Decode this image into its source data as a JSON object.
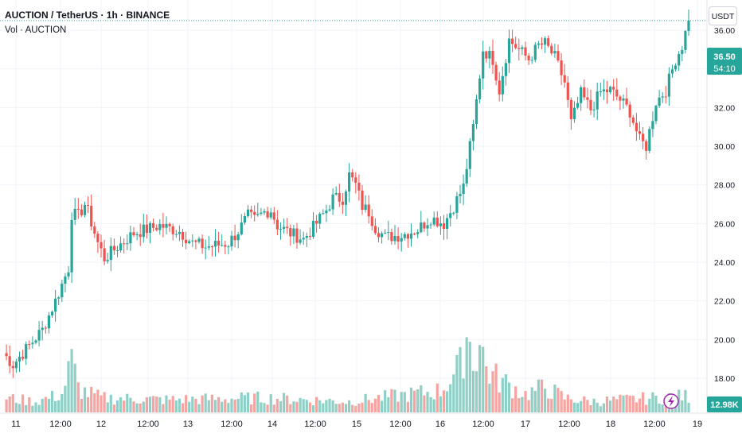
{
  "header": {
    "symbol_line": "AUCTION / TetherUS · 1h · BINANCE",
    "indicator": "Vol · AUCTION"
  },
  "currency_button": "USDT",
  "price_marker": {
    "price": "36.50",
    "countdown": "54:10"
  },
  "volume_marker": "12.98K",
  "colors": {
    "up": "#26a69a",
    "down": "#ef5350",
    "vol_up": "#8fd0c6",
    "vol_down": "#f4a4a1",
    "grid": "#f0f3fa",
    "price_tag": "#26a69a",
    "volume_tag": "#26a69a",
    "text": "#131722"
  },
  "icons": {
    "lightning": "lightning-icon"
  },
  "chart_data": {
    "type": "candlestick",
    "y_axis": {
      "ticks": [
        "18.00",
        "20.00",
        "22.00",
        "24.00",
        "26.00",
        "28.00",
        "30.00",
        "32.00",
        "34.00",
        "36.00"
      ],
      "range": [
        16.2,
        38.2
      ]
    },
    "x_axis": {
      "ticks": [
        "11",
        "12:00",
        "12",
        "12:00",
        "13",
        "12:00",
        "14",
        "12:00",
        "15",
        "12:00",
        "16",
        "12:00",
        "17",
        "12:00",
        "18",
        "12:00",
        "19"
      ]
    },
    "anchors": [
      [
        0,
        19.3
      ],
      [
        3,
        18.7
      ],
      [
        8,
        19.7
      ],
      [
        12,
        20.5
      ],
      [
        16,
        22.0
      ],
      [
        20,
        23.7
      ],
      [
        21,
        26.5
      ],
      [
        23,
        26.4
      ],
      [
        25,
        27.0
      ],
      [
        26,
        26.6
      ],
      [
        29,
        25.0
      ],
      [
        31,
        24.2
      ],
      [
        35,
        24.8
      ],
      [
        40,
        25.5
      ],
      [
        48,
        25.9
      ],
      [
        54,
        25.6
      ],
      [
        58,
        25.0
      ],
      [
        62,
        24.8
      ],
      [
        66,
        24.9
      ],
      [
        69,
        25.0
      ],
      [
        72,
        25.6
      ],
      [
        75,
        26.4
      ],
      [
        77,
        26.2
      ],
      [
        80,
        26.6
      ],
      [
        82,
        26.7
      ],
      [
        84,
        25.9
      ],
      [
        88,
        25.5
      ],
      [
        92,
        25.2
      ],
      [
        95,
        25.8
      ],
      [
        99,
        26.7
      ],
      [
        101,
        27.3
      ],
      [
        104,
        27.3
      ],
      [
        106,
        28.5
      ],
      [
        108,
        28.0
      ],
      [
        110,
        26.9
      ],
      [
        112,
        26.6
      ],
      [
        114,
        25.8
      ],
      [
        117,
        25.3
      ],
      [
        122,
        25.4
      ],
      [
        127,
        25.7
      ],
      [
        131,
        26.3
      ],
      [
        135,
        26.0
      ],
      [
        138,
        26.9
      ],
      [
        141,
        27.9
      ],
      [
        144,
        31.0
      ],
      [
        147,
        35.0
      ],
      [
        150,
        34.5
      ],
      [
        152,
        32.9
      ],
      [
        155,
        35.5
      ],
      [
        158,
        35.0
      ],
      [
        161,
        34.5
      ],
      [
        164,
        35.2
      ],
      [
        166,
        35.3
      ],
      [
        169,
        34.6
      ],
      [
        172,
        33.3
      ],
      [
        174,
        31.2
      ],
      [
        177,
        32.7
      ],
      [
        180,
        31.9
      ],
      [
        183,
        32.8
      ],
      [
        186,
        32.9
      ],
      [
        189,
        32.4
      ],
      [
        192,
        31.8
      ],
      [
        195,
        30.3
      ],
      [
        197,
        30.0
      ],
      [
        200,
        32.3
      ],
      [
        203,
        32.9
      ],
      [
        206,
        34.5
      ],
      [
        208,
        35.2
      ],
      [
        210,
        36.5
      ]
    ],
    "volume_anchors": [
      [
        0,
        8
      ],
      [
        10,
        6
      ],
      [
        18,
        10
      ],
      [
        21,
        28
      ],
      [
        23,
        14
      ],
      [
        24,
        12
      ],
      [
        30,
        8
      ],
      [
        50,
        7
      ],
      [
        80,
        8
      ],
      [
        106,
        6
      ],
      [
        134,
        12
      ],
      [
        140,
        25
      ],
      [
        142,
        45
      ],
      [
        144,
        30
      ],
      [
        146,
        38
      ],
      [
        148,
        25
      ],
      [
        150,
        20
      ],
      [
        160,
        10
      ],
      [
        166,
        14
      ],
      [
        172,
        8
      ],
      [
        180,
        6
      ],
      [
        200,
        8
      ],
      [
        210,
        9
      ]
    ]
  }
}
